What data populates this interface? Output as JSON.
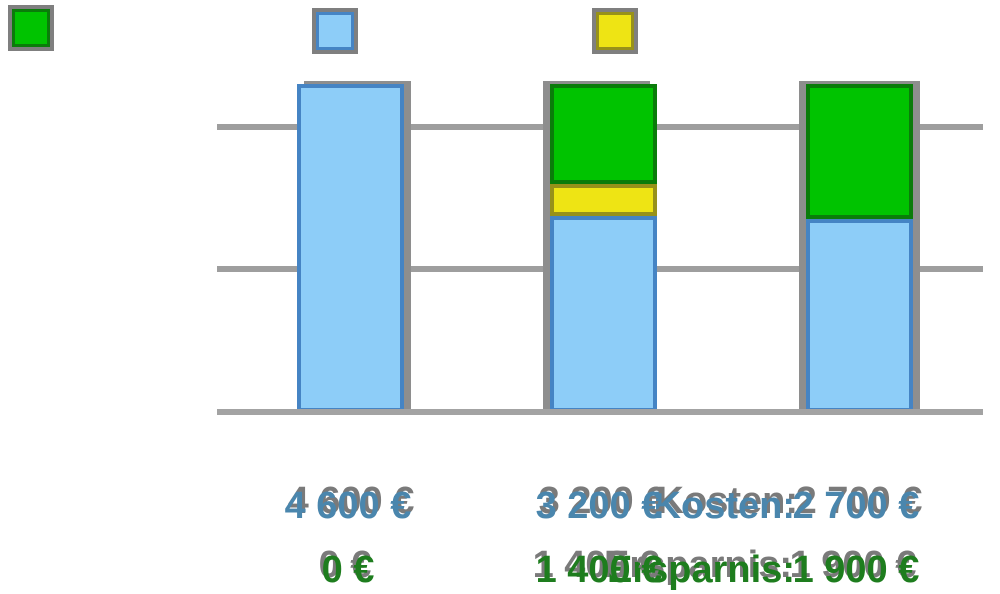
{
  "colors": {
    "background": "#ffffff",
    "gridline": "#9e9e9e",
    "axis": "#a3a3a3",
    "bar_shadow": "#8e8e8e",
    "text_shadow": "#7a7a7a",
    "legend_border": "#7f7f7f",
    "kosten_text": "#4a86ad",
    "ersparnis_text": "#1e7d1e",
    "segments": {
      "blue": {
        "fill": "#8dcdf8",
        "border": "#4584c4"
      },
      "green": {
        "fill": "#00c300",
        "border": "#0a7c0a"
      },
      "yellow": {
        "fill": "#eee414",
        "border": "#97911a"
      }
    }
  },
  "legend": {
    "swatches": [
      {
        "name": "green-swatch",
        "color": "green"
      },
      {
        "name": "blue-swatch",
        "color": "blue"
      },
      {
        "name": "yellow-swatch",
        "color": "yellow"
      }
    ]
  },
  "chart_data": {
    "type": "bar",
    "stacked": true,
    "title": "",
    "xlabel": "",
    "ylabel": "",
    "ylim": [
      0,
      4600
    ],
    "gridlines_eur": [
      2000,
      4000
    ],
    "legend_position": "top",
    "axis_labels_visible": false,
    "bars": [
      {
        "segments": [
          {
            "color": "blue",
            "value_eur": 4600
          }
        ]
      },
      {
        "segments": [
          {
            "color": "blue",
            "value_eur": 2750
          },
          {
            "color": "yellow",
            "value_eur": 450
          },
          {
            "color": "green",
            "value_eur": 1400
          }
        ]
      },
      {
        "segments": [
          {
            "color": "blue",
            "value_eur": 2700
          },
          {
            "color": "green",
            "value_eur": 1900
          }
        ]
      }
    ],
    "kosten_eur": [
      4600,
      3200,
      2700
    ],
    "ersparnis_eur": [
      0,
      1400,
      1900
    ]
  },
  "table": {
    "rows": [
      {
        "key": "kosten",
        "label": "Kosten:",
        "values": [
          "4 600 €",
          "3 200 €",
          "2 700 €"
        ]
      },
      {
        "key": "ersparnis",
        "label": "Ersparnis:",
        "values": [
          "0 €",
          "1 400 €",
          "1 900 €"
        ]
      }
    ]
  }
}
